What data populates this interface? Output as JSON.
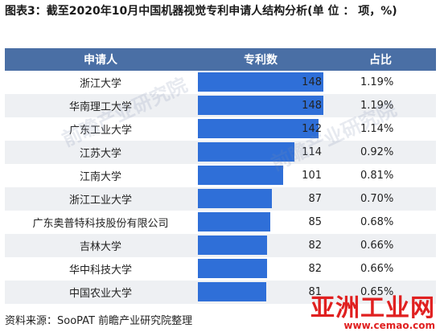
{
  "title": "图表3：截至2020年10月中国机器视觉专利申请人结构分析(单 位 ： 项，%)",
  "headers": {
    "name": "申请人",
    "count": "专利数",
    "share": "占比"
  },
  "colors": {
    "header_bg": "#4a6fa5",
    "bar": "#2f6fd8"
  },
  "chart_data": {
    "type": "table",
    "title": "图表3：截至2020年10月中国机器视觉专利申请人结构分析(单 位 ： 项，%)",
    "columns": [
      "申请人",
      "专利数",
      "占比"
    ],
    "rows": [
      {
        "name": "浙江大学",
        "count": 148,
        "share": "1.19%"
      },
      {
        "name": "华南理工大学",
        "count": 148,
        "share": "1.19%"
      },
      {
        "name": "广东工业大学",
        "count": 142,
        "share": "1.14%"
      },
      {
        "name": "江苏大学",
        "count": 114,
        "share": "0.92%"
      },
      {
        "name": "江南大学",
        "count": 101,
        "share": "0.81%"
      },
      {
        "name": "浙江工业大学",
        "count": 87,
        "share": "0.70%"
      },
      {
        "name": "广东奥普特科技股份有限公司",
        "count": 85,
        "share": "0.68%"
      },
      {
        "name": "吉林大学",
        "count": 82,
        "share": "0.66%"
      },
      {
        "name": "华中科技大学",
        "count": 82,
        "share": "0.66%"
      },
      {
        "name": "中国农业大学",
        "count": 81,
        "share": "0.65%"
      }
    ],
    "bar_max": 148
  },
  "footer": "资料来源：SooPAT  前瞻产业研究院整理",
  "watermark": {
    "logo": "亚洲工业网",
    "url": "www.cemao.com",
    "ghost": "前瞻产业研究院"
  }
}
